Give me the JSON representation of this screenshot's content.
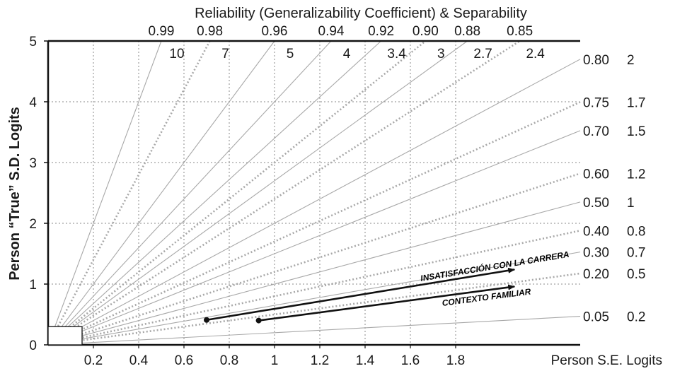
{
  "chart_data": {
    "type": "line",
    "title": "Reliability (Generalizability Coefficient) & Separability",
    "xlabel": "Person S.E. Logits",
    "ylabel": "Person “True” S.D. Logits",
    "xlim": [
      0,
      2.35
    ],
    "ylim": [
      0,
      5
    ],
    "x_ticks": [
      "0.2",
      "0.4",
      "0.6",
      "0.8",
      "1",
      "1.2",
      "1.4",
      "1.6",
      "1.8"
    ],
    "y_ticks": [
      "0",
      "1",
      "2",
      "3",
      "4",
      "5"
    ],
    "grid": true,
    "reference_lines": [
      {
        "reliability": "0.99",
        "separation": "10",
        "slope": 10,
        "style": "solid"
      },
      {
        "reliability": "0.98",
        "separation": "7",
        "slope": 7,
        "style": "dotted"
      },
      {
        "reliability": "0.96",
        "separation": "5",
        "slope": 5,
        "style": "solid"
      },
      {
        "reliability": "0.94",
        "separation": "4",
        "slope": 4,
        "style": "solid"
      },
      {
        "reliability": "0.92",
        "separation": "3.4",
        "slope": 3.4,
        "style": "solid"
      },
      {
        "reliability": "0.90",
        "separation": "3",
        "slope": 3,
        "style": "dotted"
      },
      {
        "reliability": "0.88",
        "separation": "2.7",
        "slope": 2.7,
        "style": "solid"
      },
      {
        "reliability": "0.85",
        "separation": "2.4",
        "slope": 2.4,
        "style": "dotted"
      },
      {
        "reliability": "0.80",
        "separation": "2",
        "slope": 2,
        "style": "solid"
      },
      {
        "reliability": "0.75",
        "separation": "1.7",
        "slope": 1.7,
        "style": "dotted"
      },
      {
        "reliability": "0.70",
        "separation": "1.5",
        "slope": 1.5,
        "style": "solid"
      },
      {
        "reliability": "0.60",
        "separation": "1.2",
        "slope": 1.2,
        "style": "dotted"
      },
      {
        "reliability": "0.50",
        "separation": "1",
        "slope": 1,
        "style": "solid"
      },
      {
        "reliability": "0.40",
        "separation": "0.8",
        "slope": 0.8,
        "style": "dotted"
      },
      {
        "reliability": "0.30",
        "separation": "0.7",
        "slope": 0.65,
        "style": "solid"
      },
      {
        "reliability": "0.20",
        "separation": "0.5",
        "slope": 0.5,
        "style": "dotted"
      },
      {
        "reliability": "0.05",
        "separation": "0.2",
        "slope": 0.2,
        "style": "solid"
      }
    ],
    "series": [
      {
        "name": "INSATISFACCIÓN CON LA CARRERA",
        "x": [
          0.7,
          2.06
        ],
        "y": [
          0.41,
          1.24
        ]
      },
      {
        "name": "CONTEXTO FAMILIAR",
        "x": [
          0.93,
          2.06
        ],
        "y": [
          0.4,
          0.96
        ]
      }
    ],
    "colors": {
      "reference_line": "#a8a8a8",
      "series": "#111111",
      "grid": "#888888"
    }
  }
}
